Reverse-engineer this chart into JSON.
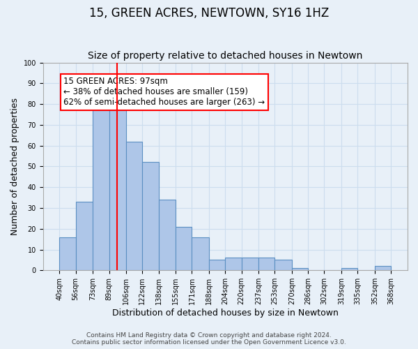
{
  "title": "15, GREEN ACRES, NEWTOWN, SY16 1HZ",
  "subtitle": "Size of property relative to detached houses in Newtown",
  "xlabel": "Distribution of detached houses by size in Newtown",
  "ylabel": "Number of detached properties",
  "bar_edges": [
    40,
    56,
    73,
    89,
    106,
    122,
    138,
    155,
    171,
    188,
    204,
    220,
    237,
    253,
    270,
    286,
    302,
    319,
    335,
    352,
    368
  ],
  "bar_heights": [
    16,
    33,
    80,
    79,
    62,
    52,
    34,
    21,
    16,
    5,
    6,
    6,
    6,
    5,
    1,
    0,
    0,
    1,
    0,
    2
  ],
  "bar_color": "#aec6e8",
  "bar_edge_color": "#5a8fc2",
  "property_line_x": 97,
  "property_line_color": "red",
  "annotation_text": "15 GREEN ACRES: 97sqm\n← 38% of detached houses are smaller (159)\n62% of semi-detached houses are larger (263) →",
  "annotation_box_color": "white",
  "annotation_box_edge_color": "red",
  "ylim": [
    0,
    100
  ],
  "yticks": [
    0,
    10,
    20,
    30,
    40,
    50,
    60,
    70,
    80,
    90,
    100
  ],
  "grid_color": "#ccddee",
  "background_color": "#e8f0f8",
  "footer_line1": "Contains HM Land Registry data © Crown copyright and database right 2024.",
  "footer_line2": "Contains public sector information licensed under the Open Government Licence v3.0.",
  "title_fontsize": 12,
  "subtitle_fontsize": 10,
  "xlabel_fontsize": 9,
  "ylabel_fontsize": 9,
  "tick_fontsize": 7,
  "annotation_fontsize": 8.5,
  "footer_fontsize": 6.5
}
